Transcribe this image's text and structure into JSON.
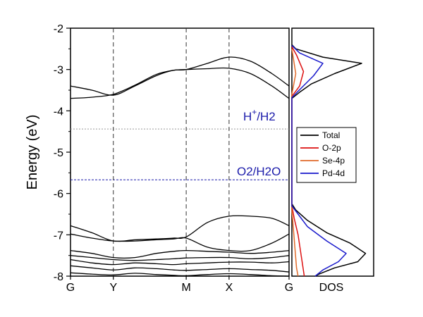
{
  "chart_data": [
    {
      "type": "line",
      "title": "",
      "ylabel": "Energy (eV)",
      "xlabel": "",
      "ylim": [
        -8,
        -2
      ],
      "yticks": [
        "-2",
        "-3",
        "-4",
        "-5",
        "-6",
        "-7",
        "-8"
      ],
      "x_ticks": [
        "G",
        "Y",
        "M",
        "X",
        "G"
      ],
      "x_positions": [
        0,
        1,
        2.7,
        3.7,
        5.1
      ],
      "grid": false,
      "reference_lines": [
        {
          "label_main": "H",
          "label_sup": "+",
          "label_rest": "/H2",
          "value": -4.44,
          "color": "#999999"
        },
        {
          "label_main": "O2/H2O",
          "value": -5.67,
          "color": "#1a1aaa"
        }
      ],
      "series": [
        {
          "name": "band-1",
          "x": [
            0,
            0.5,
            1.0,
            1.5,
            2.0,
            2.4,
            2.7,
            3.2,
            3.7,
            4.2,
            4.7,
            5.1
          ],
          "y": [
            -3.4,
            -3.5,
            -3.62,
            -3.4,
            -3.15,
            -3.02,
            -3.0,
            -2.85,
            -2.7,
            -2.8,
            -3.1,
            -3.4
          ]
        },
        {
          "name": "band-2",
          "x": [
            0,
            0.5,
            1.0,
            1.5,
            2.0,
            2.4,
            2.7,
            3.2,
            3.7,
            4.2,
            4.7,
            5.1
          ],
          "y": [
            -3.7,
            -3.67,
            -3.6,
            -3.38,
            -3.12,
            -3.02,
            -3.0,
            -2.98,
            -2.97,
            -3.1,
            -3.4,
            -3.7
          ]
        },
        {
          "name": "band-3",
          "x": [
            0,
            0.5,
            1.0,
            1.5,
            2.0,
            2.4,
            2.7,
            3.2,
            3.7,
            4.2,
            4.7,
            5.1
          ],
          "y": [
            -6.78,
            -6.95,
            -7.15,
            -7.12,
            -7.1,
            -7.08,
            -7.05,
            -6.7,
            -6.55,
            -6.55,
            -6.6,
            -6.78
          ]
        },
        {
          "name": "band-4",
          "x": [
            0,
            0.5,
            1.0,
            1.5,
            2.0,
            2.4,
            2.7,
            3.2,
            3.7,
            4.2,
            4.7,
            5.1
          ],
          "y": [
            -6.98,
            -7.08,
            -7.15,
            -7.15,
            -7.12,
            -7.1,
            -7.08,
            -7.3,
            -7.38,
            -7.38,
            -7.2,
            -6.98
          ]
        },
        {
          "name": "band-5",
          "x": [
            0,
            0.5,
            1.0,
            1.5,
            2.0,
            2.4,
            2.7,
            3.2,
            3.7,
            4.2,
            4.7,
            5.1
          ],
          "y": [
            -7.38,
            -7.45,
            -7.55,
            -7.55,
            -7.45,
            -7.4,
            -7.38,
            -7.4,
            -7.42,
            -7.45,
            -7.42,
            -7.38
          ]
        },
        {
          "name": "band-6",
          "x": [
            0,
            0.5,
            1.0,
            1.5,
            2.0,
            2.4,
            2.7,
            3.2,
            3.7,
            4.2,
            4.7,
            5.1
          ],
          "y": [
            -7.5,
            -7.55,
            -7.6,
            -7.62,
            -7.6,
            -7.58,
            -7.56,
            -7.55,
            -7.55,
            -7.58,
            -7.55,
            -7.5
          ]
        },
        {
          "name": "band-7",
          "x": [
            0,
            0.5,
            1.0,
            1.5,
            2.0,
            2.4,
            2.7,
            3.2,
            3.7,
            4.2,
            4.7,
            5.1
          ],
          "y": [
            -7.6,
            -7.68,
            -7.72,
            -7.68,
            -7.7,
            -7.72,
            -7.7,
            -7.68,
            -7.66,
            -7.66,
            -7.68,
            -7.65
          ]
        },
        {
          "name": "band-8",
          "x": [
            0,
            0.5,
            1.0,
            1.5,
            2.0,
            2.4,
            2.7,
            3.2,
            3.7,
            4.2,
            4.7,
            5.1
          ],
          "y": [
            -7.75,
            -7.8,
            -7.85,
            -7.8,
            -7.82,
            -7.85,
            -7.86,
            -7.84,
            -7.82,
            -7.84,
            -7.86,
            -7.9
          ]
        },
        {
          "name": "band-9",
          "x": [
            0,
            0.5,
            1.0,
            1.5,
            2.0,
            2.4,
            2.7,
            3.2,
            3.7,
            4.2,
            4.7,
            5.1
          ],
          "y": [
            -7.92,
            -7.95,
            -7.97,
            -7.93,
            -7.96,
            -7.98,
            -7.99,
            -7.96,
            -7.94,
            -7.96,
            -7.99,
            -8.0
          ]
        }
      ]
    },
    {
      "type": "line",
      "title": "",
      "xlabel": "DOS",
      "ylim": [
        -8,
        -2
      ],
      "legend_position": "center-right",
      "series": [
        {
          "name": "Total",
          "color": "#000000",
          "points": [
            [
              0,
              -2.4
            ],
            [
              0.05,
              -2.5
            ],
            [
              0.4,
              -2.7
            ],
            [
              0.9,
              -2.85
            ],
            [
              0.55,
              -3.1
            ],
            [
              0.25,
              -3.35
            ],
            [
              0.1,
              -3.55
            ],
            [
              0,
              -3.7
            ],
            [
              0,
              -6.25
            ],
            [
              0.05,
              -6.4
            ],
            [
              0.2,
              -6.65
            ],
            [
              0.45,
              -6.95
            ],
            [
              0.75,
              -7.2
            ],
            [
              0.95,
              -7.45
            ],
            [
              0.85,
              -7.65
            ],
            [
              0.55,
              -7.8
            ],
            [
              0.35,
              -7.95
            ],
            [
              0.3,
              -8.0
            ]
          ]
        },
        {
          "name": "O-2p",
          "color": "#dd1111",
          "points": [
            [
              0,
              -2.45
            ],
            [
              0.06,
              -2.65
            ],
            [
              0.15,
              -3.05
            ],
            [
              0.1,
              -3.4
            ],
            [
              0,
              -3.65
            ],
            [
              0,
              -6.3
            ],
            [
              0.03,
              -6.6
            ],
            [
              0.08,
              -7.0
            ],
            [
              0.12,
              -7.5
            ],
            [
              0.16,
              -8.0
            ]
          ]
        },
        {
          "name": "Se-4p",
          "color": "#e06a2a",
          "points": [
            [
              0,
              -2.5
            ],
            [
              0.05,
              -3.1
            ],
            [
              0,
              -3.6
            ],
            [
              0,
              -6.4
            ],
            [
              0.03,
              -7.1
            ],
            [
              0.06,
              -7.8
            ],
            [
              0.08,
              -8.0
            ]
          ]
        },
        {
          "name": "Pd-4d",
          "color": "#1a1acc",
          "points": [
            [
              0,
              -2.42
            ],
            [
              0.1,
              -2.6
            ],
            [
              0.4,
              -2.85
            ],
            [
              0.28,
              -3.15
            ],
            [
              0.12,
              -3.45
            ],
            [
              0,
              -3.68
            ],
            [
              0,
              -6.3
            ],
            [
              0.08,
              -6.5
            ],
            [
              0.2,
              -6.8
            ],
            [
              0.45,
              -7.15
            ],
            [
              0.7,
              -7.45
            ],
            [
              0.6,
              -7.65
            ],
            [
              0.4,
              -7.85
            ],
            [
              0.3,
              -8.0
            ]
          ]
        }
      ]
    }
  ]
}
